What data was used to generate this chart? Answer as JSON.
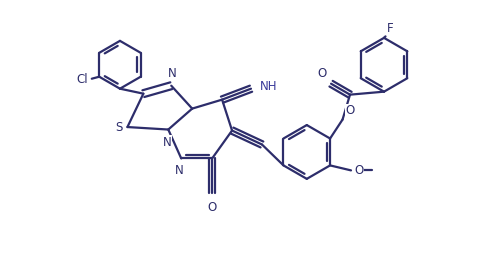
{
  "background_color": "#ffffff",
  "line_color": "#2d2d6b",
  "line_width": 1.6,
  "font_size": 8.5,
  "figsize": [
    4.94,
    2.79
  ],
  "dpi": 100,
  "xlim": [
    0,
    9.4
  ],
  "ylim": [
    0,
    5.6
  ]
}
